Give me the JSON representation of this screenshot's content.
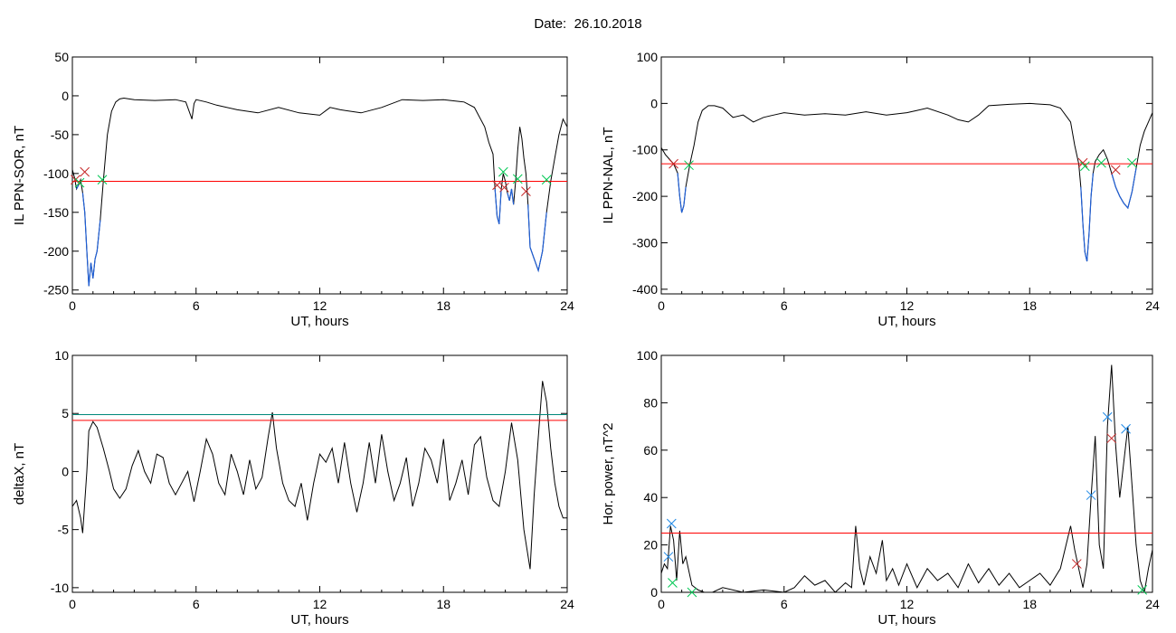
{
  "header": {
    "date_label": "Date:",
    "date_value": "26.10.2018"
  },
  "colors": {
    "trace": "#000000",
    "threshold": "#ff0000",
    "threshold2": "#00897b",
    "highlight": "#1f5fd6",
    "marker_red": "#c62828",
    "marker_green": "#00c853",
    "marker_blue": "#1e88e5"
  },
  "chart_data": [
    {
      "id": "sor",
      "type": "line",
      "ylabel": "IL PPN-SOR, nT",
      "xlabel": "UT, hours",
      "xlim": [
        0,
        24
      ],
      "ylim": [
        -255,
        50
      ],
      "xticks": [
        0,
        6,
        12,
        18,
        24
      ],
      "yticks": [
        50,
        0,
        -50,
        -100,
        -150,
        -200,
        -250
      ],
      "threshold": -110,
      "series": [
        {
          "x": [
            0,
            0.1,
            0.2,
            0.3,
            0.4,
            0.5,
            0.6,
            0.7,
            0.8,
            0.9,
            1.0,
            1.1,
            1.2,
            1.35,
            1.5,
            1.7,
            1.9,
            2.1,
            2.3,
            2.5,
            3,
            4,
            5,
            5.5,
            5.8,
            5.9,
            6,
            6.5,
            7,
            8,
            9,
            10,
            11,
            12,
            12.5,
            13,
            14,
            15,
            16,
            17,
            18,
            19,
            19.5,
            20,
            20.2,
            20.4,
            20.5,
            20.6,
            20.7,
            20.8,
            20.9,
            21.0,
            21.1,
            21.2,
            21.3,
            21.4,
            21.5,
            21.6,
            21.7,
            21.8,
            21.9,
            22.0,
            22.1,
            22.2,
            22.4,
            22.6,
            22.8,
            23.0,
            23.2,
            23.4,
            23.6,
            23.8,
            24
          ],
          "y": [
            -95,
            -105,
            -120,
            -115,
            -108,
            -125,
            -150,
            -200,
            -245,
            -215,
            -235,
            -210,
            -200,
            -160,
            -110,
            -50,
            -20,
            -8,
            -4,
            -3,
            -5,
            -6,
            -5,
            -8,
            -30,
            -10,
            -5,
            -8,
            -12,
            -18,
            -22,
            -15,
            -22,
            -25,
            -15,
            -18,
            -22,
            -15,
            -5,
            -6,
            -5,
            -8,
            -15,
            -40,
            -60,
            -75,
            -120,
            -155,
            -165,
            -120,
            -100,
            -110,
            -125,
            -135,
            -120,
            -140,
            -110,
            -70,
            -40,
            -55,
            -80,
            -100,
            -140,
            -195,
            -210,
            -225,
            -200,
            -150,
            -110,
            -80,
            -50,
            -30,
            -40
          ]
        }
      ],
      "markers": [
        {
          "x": 0.15,
          "y": -108,
          "color": "red"
        },
        {
          "x": 0.35,
          "y": -112,
          "color": "green"
        },
        {
          "x": 0.6,
          "y": -98,
          "color": "red"
        },
        {
          "x": 1.45,
          "y": -108,
          "color": "green"
        },
        {
          "x": 20.6,
          "y": -115,
          "color": "red"
        },
        {
          "x": 20.9,
          "y": -98,
          "color": "green"
        },
        {
          "x": 20.95,
          "y": -118,
          "color": "red"
        },
        {
          "x": 21.6,
          "y": -107,
          "color": "green"
        },
        {
          "x": 22.0,
          "y": -123,
          "color": "red"
        },
        {
          "x": 23.0,
          "y": -108,
          "color": "green"
        }
      ]
    },
    {
      "id": "nal",
      "type": "line",
      "ylabel": "IL PPN-NAL, nT",
      "xlabel": "UT, hours",
      "xlim": [
        0,
        24
      ],
      "ylim": [
        -410,
        100
      ],
      "xticks": [
        0,
        6,
        12,
        18,
        24
      ],
      "yticks": [
        100,
        0,
        -100,
        -200,
        -300,
        -400
      ],
      "threshold": -130,
      "series": [
        {
          "x": [
            0,
            0.2,
            0.4,
            0.6,
            0.8,
            0.9,
            1.0,
            1.1,
            1.2,
            1.4,
            1.6,
            1.8,
            2.0,
            2.3,
            2.6,
            3,
            3.5,
            4,
            4.5,
            5,
            5.5,
            6,
            7,
            8,
            9,
            10,
            11,
            12,
            12.5,
            13,
            14,
            14.5,
            15,
            15.5,
            16,
            17,
            18,
            19,
            19.5,
            20,
            20.2,
            20.4,
            20.5,
            20.6,
            20.7,
            20.8,
            20.9,
            21.0,
            21.1,
            21.2,
            21.4,
            21.6,
            21.8,
            22.0,
            22.2,
            22.4,
            22.6,
            22.8,
            23.0,
            23.2,
            23.4,
            23.6,
            23.8,
            24
          ],
          "y": [
            -95,
            -110,
            -120,
            -130,
            -150,
            -200,
            -235,
            -220,
            -180,
            -130,
            -90,
            -40,
            -15,
            -5,
            -5,
            -10,
            -30,
            -25,
            -40,
            -30,
            -25,
            -20,
            -25,
            -22,
            -25,
            -18,
            -25,
            -20,
            -15,
            -10,
            -25,
            -35,
            -40,
            -25,
            -5,
            -2,
            0,
            -3,
            -10,
            -40,
            -90,
            -130,
            -180,
            -260,
            -320,
            -340,
            -280,
            -200,
            -150,
            -125,
            -110,
            -100,
            -120,
            -150,
            -180,
            -200,
            -215,
            -225,
            -190,
            -140,
            -90,
            -60,
            -40,
            -20
          ]
        }
      ],
      "markers": [
        {
          "x": 0.6,
          "y": -130,
          "color": "red"
        },
        {
          "x": 1.35,
          "y": -133,
          "color": "green"
        },
        {
          "x": 20.6,
          "y": -128,
          "color": "red"
        },
        {
          "x": 20.7,
          "y": -135,
          "color": "green"
        },
        {
          "x": 21.5,
          "y": -128,
          "color": "green"
        },
        {
          "x": 22.2,
          "y": -143,
          "color": "red"
        },
        {
          "x": 23.0,
          "y": -128,
          "color": "green"
        }
      ]
    },
    {
      "id": "deltax",
      "type": "line",
      "ylabel": "deltaX, nT",
      "xlabel": "UT, hours",
      "xlim": [
        0,
        24
      ],
      "ylim": [
        -10.4,
        10
      ],
      "xticks": [
        0,
        6,
        12,
        18,
        24
      ],
      "yticks": [
        10,
        5,
        0,
        -5,
        -10
      ],
      "threshold": 4.4,
      "threshold2": 4.9,
      "series": [
        {
          "x": [
            0,
            0.2,
            0.4,
            0.5,
            0.7,
            0.8,
            1.0,
            1.2,
            1.5,
            1.8,
            2,
            2.3,
            2.6,
            2.9,
            3.2,
            3.5,
            3.8,
            4.1,
            4.4,
            4.7,
            5,
            5.3,
            5.6,
            5.9,
            6.2,
            6.5,
            6.8,
            7.1,
            7.4,
            7.7,
            8,
            8.3,
            8.6,
            8.9,
            9.2,
            9.5,
            9.7,
            9.9,
            10.2,
            10.5,
            10.8,
            11.1,
            11.4,
            11.7,
            12,
            12.3,
            12.6,
            12.9,
            13.2,
            13.5,
            13.8,
            14.1,
            14.4,
            14.7,
            15,
            15.3,
            15.6,
            15.9,
            16.2,
            16.5,
            16.8,
            17.1,
            17.4,
            17.7,
            18,
            18.3,
            18.6,
            18.9,
            19.2,
            19.5,
            19.8,
            20.1,
            20.4,
            20.7,
            21.0,
            21.3,
            21.6,
            21.9,
            22.2,
            22.4,
            22.6,
            22.8,
            23.0,
            23.2,
            23.4,
            23.6,
            23.8,
            24
          ],
          "y": [
            -3,
            -2.5,
            -4,
            -5.3,
            0,
            3.5,
            4.3,
            3.8,
            2,
            0,
            -1.5,
            -2.3,
            -1.5,
            0.5,
            1.8,
            0,
            -1,
            1.5,
            1.2,
            -1,
            -2,
            -1,
            0,
            -2.6,
            0,
            2.8,
            1.5,
            -1,
            -2,
            1.5,
            0,
            -2,
            1,
            -1.5,
            -0.5,
            3,
            5.1,
            2,
            -1,
            -2.5,
            -3,
            -1,
            -4.2,
            -1,
            1.5,
            0.8,
            2,
            -1,
            2.5,
            -1,
            -3.5,
            -1,
            2.5,
            -1,
            3.2,
            0,
            -2.5,
            -1,
            1.2,
            -3,
            -1,
            2,
            1,
            -1,
            2.8,
            -2.5,
            -1,
            1,
            -2,
            2.3,
            3,
            -0.5,
            -2.5,
            -3,
            0,
            4.2,
            1,
            -5,
            -8.4,
            -2,
            3,
            7.8,
            6,
            2,
            -1,
            -3,
            -4,
            -4
          ]
        }
      ],
      "markers": []
    },
    {
      "id": "power",
      "type": "line",
      "ylabel": "Hor. power, nT^2",
      "xlabel": "UT, hours",
      "xlim": [
        0,
        24
      ],
      "ylim": [
        0,
        100
      ],
      "xticks": [
        0,
        6,
        12,
        18,
        24
      ],
      "yticks": [
        100,
        80,
        60,
        40,
        20,
        0
      ],
      "threshold": 25,
      "series": [
        {
          "x": [
            0,
            0.15,
            0.3,
            0.45,
            0.6,
            0.75,
            0.9,
            1.05,
            1.2,
            1.5,
            1.8,
            2.1,
            2.5,
            3,
            4,
            5,
            6,
            6.5,
            7,
            7.5,
            8,
            8.5,
            9,
            9.3,
            9.5,
            9.7,
            9.9,
            10.2,
            10.5,
            10.8,
            11,
            11.3,
            11.6,
            12,
            12.5,
            13,
            13.5,
            14,
            14.5,
            15,
            15.5,
            16,
            16.5,
            17,
            17.5,
            18,
            18.5,
            19,
            19.5,
            20,
            20.2,
            20.4,
            20.6,
            20.8,
            21.0,
            21.2,
            21.4,
            21.6,
            21.8,
            22.0,
            22.2,
            22.4,
            22.6,
            22.8,
            23.0,
            23.2,
            23.4,
            23.6,
            23.8,
            24
          ],
          "y": [
            8,
            12,
            10,
            28,
            22,
            5,
            26,
            12,
            15,
            3,
            1,
            0,
            0,
            2,
            0,
            1,
            0,
            2,
            7,
            3,
            5,
            0,
            4,
            2,
            28,
            10,
            3,
            15,
            8,
            22,
            5,
            10,
            3,
            12,
            2,
            10,
            5,
            8,
            2,
            12,
            4,
            10,
            3,
            8,
            2,
            5,
            8,
            3,
            10,
            28,
            18,
            10,
            2,
            12,
            40,
            66,
            20,
            10,
            70,
            96,
            62,
            40,
            55,
            70,
            45,
            20,
            5,
            0,
            10,
            18
          ]
        }
      ],
      "markers": [
        {
          "x": 0.35,
          "y": 15,
          "color": "blue"
        },
        {
          "x": 0.5,
          "y": 29,
          "color": "blue"
        },
        {
          "x": 0.55,
          "y": 4,
          "color": "green"
        },
        {
          "x": 1.5,
          "y": 0,
          "color": "green"
        },
        {
          "x": 20.3,
          "y": 12,
          "color": "red"
        },
        {
          "x": 21.0,
          "y": 41,
          "color": "blue"
        },
        {
          "x": 21.8,
          "y": 74,
          "color": "blue"
        },
        {
          "x": 22.0,
          "y": 65,
          "color": "red"
        },
        {
          "x": 22.7,
          "y": 69,
          "color": "blue"
        },
        {
          "x": 23.5,
          "y": 1,
          "color": "green"
        }
      ]
    }
  ]
}
